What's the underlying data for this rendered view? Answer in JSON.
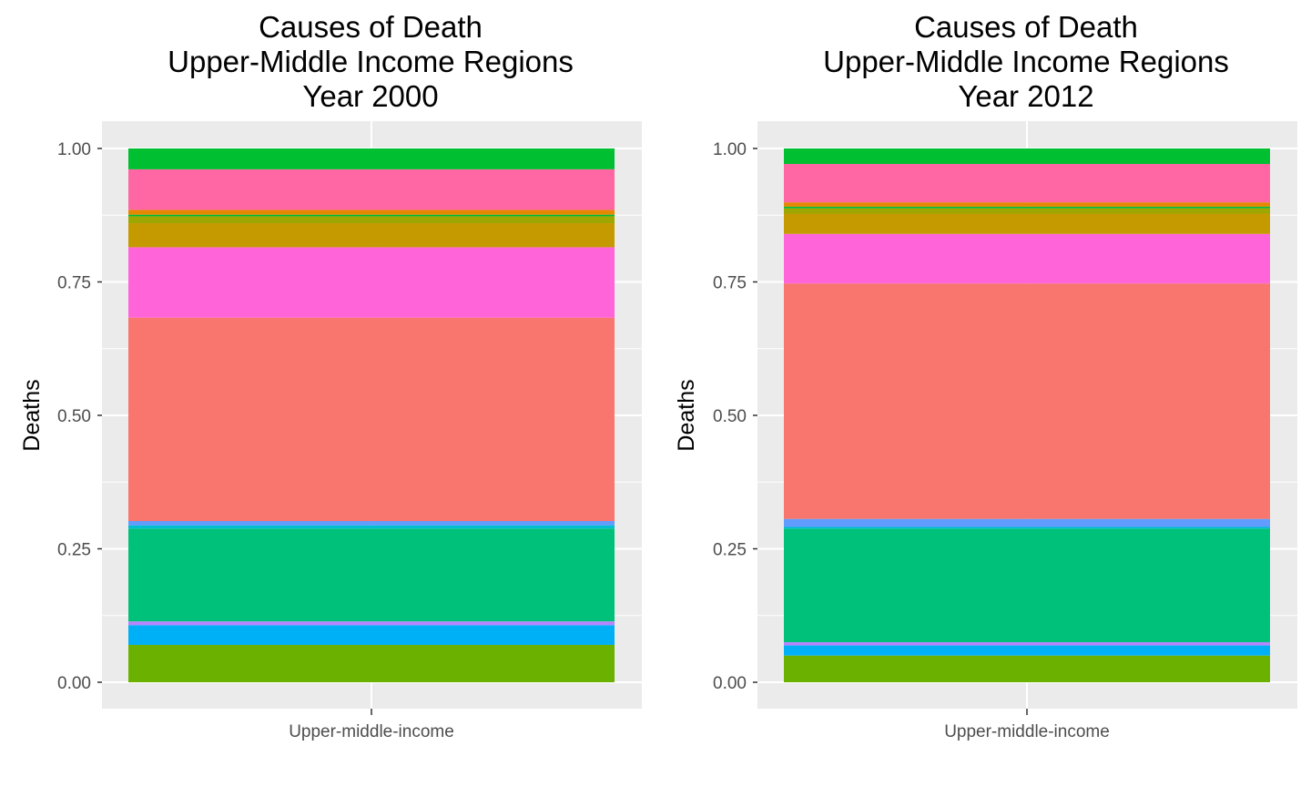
{
  "chart_data": [
    {
      "type": "bar",
      "stacked": true,
      "position": "fill",
      "title": [
        "Causes of Death",
        "Upper-Middle Income Regions",
        "Year 2000"
      ],
      "xlabel": "",
      "ylabel": "Deaths",
      "categories": [
        "Upper-middle-income"
      ],
      "ylim": [
        0,
        1
      ],
      "yticks": [
        "0.00",
        "0.25",
        "0.50",
        "0.75",
        "1.00"
      ],
      "grid": true,
      "legend": "none",
      "series": [
        {
          "color": "#6BB100",
          "values": [
            0.07
          ]
        },
        {
          "color": "#00B0F6",
          "values": [
            0.037
          ]
        },
        {
          "color": "#B983FF",
          "values": [
            0.007
          ]
        },
        {
          "color": "#00C17A",
          "values": [
            0.174
          ]
        },
        {
          "color": "#00BDD0",
          "values": [
            0.006
          ]
        },
        {
          "color": "#619CFF",
          "values": [
            0.008
          ]
        },
        {
          "color": "#F8766D",
          "values": [
            0.381
          ]
        },
        {
          "color": "#FF64D8",
          "values": [
            0.132
          ]
        },
        {
          "color": "#C59900",
          "values": [
            0.045
          ]
        },
        {
          "color": "#9DA700",
          "values": [
            0.013
          ]
        },
        {
          "color": "#00BA38",
          "values": [
            0.003
          ]
        },
        {
          "color": "#E58700",
          "values": [
            0.009
          ]
        },
        {
          "color": "#FF67A4",
          "values": [
            0.076
          ]
        },
        {
          "color": "#00BF31",
          "values": [
            0.039
          ]
        }
      ]
    },
    {
      "type": "bar",
      "stacked": true,
      "position": "fill",
      "title": [
        "Causes of Death",
        "Upper-Middle Income Regions",
        "Year 2012"
      ],
      "xlabel": "",
      "ylabel": "Deaths",
      "categories": [
        "Upper-middle-income"
      ],
      "ylim": [
        0,
        1
      ],
      "yticks": [
        "0.00",
        "0.25",
        "0.50",
        "0.75",
        "1.00"
      ],
      "grid": true,
      "legend": "none",
      "series": [
        {
          "color": "#6BB100",
          "values": [
            0.05
          ]
        },
        {
          "color": "#00B0F6",
          "values": [
            0.019
          ]
        },
        {
          "color": "#B983FF",
          "values": [
            0.006
          ]
        },
        {
          "color": "#00C17A",
          "values": [
            0.213
          ]
        },
        {
          "color": "#00BDD0",
          "values": [
            0.003
          ]
        },
        {
          "color": "#619CFF",
          "values": [
            0.015
          ]
        },
        {
          "color": "#F8766D",
          "values": [
            0.441
          ]
        },
        {
          "color": "#FF64D8",
          "values": [
            0.093
          ]
        },
        {
          "color": "#C59900",
          "values": [
            0.038
          ]
        },
        {
          "color": "#9DA700",
          "values": [
            0.01
          ]
        },
        {
          "color": "#00BA38",
          "values": [
            0.003
          ]
        },
        {
          "color": "#E58700",
          "values": [
            0.008
          ]
        },
        {
          "color": "#FF67A4",
          "values": [
            0.072
          ]
        },
        {
          "color": "#00BF31",
          "values": [
            0.029
          ]
        }
      ]
    }
  ]
}
